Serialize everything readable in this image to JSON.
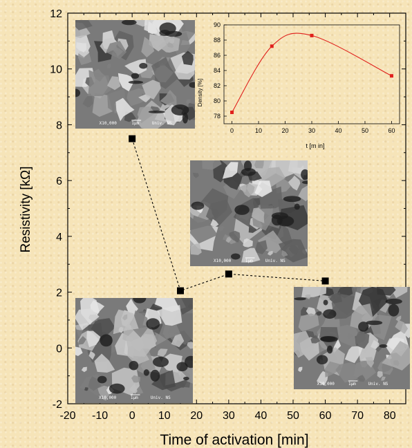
{
  "chart_data": [
    {
      "type": "line",
      "xlabel": "Time of activation [min]",
      "ylabel": "Resistivity [kΩ]",
      "xlim": [
        -20,
        85
      ],
      "ylim": [
        -2,
        12
      ],
      "x_ticks": [
        "-20",
        "-10",
        "0",
        "10",
        "20",
        "30",
        "40",
        "50",
        "60",
        "70",
        "80"
      ],
      "y_ticks": [
        "-2",
        "0",
        "2",
        "4",
        "6",
        "8",
        "10",
        "12"
      ],
      "x": [
        0,
        15,
        30,
        60
      ],
      "values": [
        7.5,
        2.05,
        2.65,
        2.4
      ],
      "line_style": "dashed",
      "marker": "square",
      "color": "#000000",
      "grid": false
    },
    {
      "type": "line",
      "xlabel": "t [m in]",
      "ylabel": "Density [%]",
      "xlim": [
        -3,
        63
      ],
      "ylim": [
        77,
        90
      ],
      "x_ticks": [
        "0",
        "10",
        "20",
        "30",
        "40",
        "50",
        "60"
      ],
      "y_ticks": [
        "78",
        "80",
        "82",
        "84",
        "86",
        "88",
        "90"
      ],
      "x": [
        0,
        15,
        30,
        60
      ],
      "values": [
        78.5,
        87.2,
        88.6,
        83.3
      ],
      "line_style": "smooth",
      "marker": "square",
      "color": "#e0201c",
      "grid": false
    }
  ],
  "sem_images": [
    {
      "label": "X10,000",
      "scale": "1μm",
      "caption": "Univ. NS"
    },
    {
      "label": "X10,000",
      "scale": "1μm",
      "caption": "Univ. NS"
    },
    {
      "label": "X10,000",
      "scale": "1μm",
      "caption": "Univ. NS"
    },
    {
      "label": "X10,000",
      "scale": "1μm",
      "caption": "Univ. NS"
    }
  ]
}
